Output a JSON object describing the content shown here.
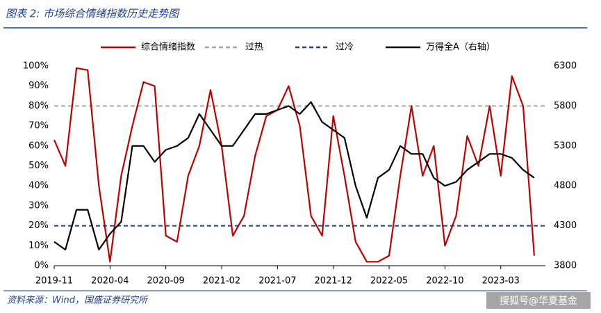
{
  "chart_data": {
    "type": "line",
    "title": "图表 2:  市场综合情绪指数历史走势图",
    "source": "资料来源：Wind，国盛证券研究所",
    "watermark": "搜狐号@华夏基金",
    "x": [
      "2019-11",
      "2019-12",
      "2020-01",
      "2020-02",
      "2020-03",
      "2020-04",
      "2020-05",
      "2020-06",
      "2020-07",
      "2020-08",
      "2020-09",
      "2020-10",
      "2020-11",
      "2020-12",
      "2021-01",
      "2021-02",
      "2021-03",
      "2021-04",
      "2021-05",
      "2021-06",
      "2021-07",
      "2021-08",
      "2021-09",
      "2021-10",
      "2021-11",
      "2021-12",
      "2022-01",
      "2022-02",
      "2022-03",
      "2022-04",
      "2022-05",
      "2022-06",
      "2022-07",
      "2022-08",
      "2022-09",
      "2022-10",
      "2022-11",
      "2022-12",
      "2023-01",
      "2023-02",
      "2023-03",
      "2023-04",
      "2023-05",
      "2023-06"
    ],
    "xlim": [
      "2019-11",
      "2023-07"
    ],
    "xticks": [
      "2019-11",
      "2020-04",
      "2020-09",
      "2021-02",
      "2021-07",
      "2021-12",
      "2022-05",
      "2022-10",
      "2023-03"
    ],
    "series": [
      {
        "name": "综合情绪指数",
        "color": "#c00000",
        "axis": "y",
        "values": [
          63,
          50,
          99,
          98,
          40,
          2,
          45,
          70,
          92,
          90,
          15,
          12,
          45,
          60,
          88,
          60,
          15,
          25,
          55,
          75,
          78,
          90,
          70,
          25,
          15,
          75,
          45,
          12,
          2,
          2,
          5,
          45,
          80,
          45,
          60,
          10,
          25,
          65,
          50,
          80,
          45,
          95,
          80,
          5
        ]
      },
      {
        "name": "万得全A（右轴）",
        "color": "#000000",
        "axis": "y2",
        "values": [
          4100,
          4000,
          4500,
          4500,
          4000,
          4200,
          4350,
          5300,
          5300,
          5100,
          5250,
          5300,
          5400,
          5700,
          5500,
          5300,
          5300,
          5500,
          5700,
          5700,
          5750,
          5800,
          5700,
          5850,
          5600,
          5500,
          5400,
          4800,
          4400,
          4900,
          5000,
          5300,
          5200,
          5200,
          4900,
          4800,
          4850,
          5000,
          5100,
          5200,
          5200,
          5150,
          5000,
          4900
        ]
      }
    ],
    "reference_lines": [
      {
        "name": "过热",
        "value": 80,
        "color": "#a6a6a6"
      },
      {
        "name": "过冷",
        "value": 20,
        "color": "#1f3f99"
      }
    ],
    "ylim": [
      0,
      100
    ],
    "yticks": [
      {
        "value": 0,
        "label": "0%"
      },
      {
        "value": 10,
        "label": "10%"
      },
      {
        "value": 20,
        "label": "20%"
      },
      {
        "value": 30,
        "label": "30%"
      },
      {
        "value": 40,
        "label": "40%"
      },
      {
        "value": 50,
        "label": "50%"
      },
      {
        "value": 60,
        "label": "60%"
      },
      {
        "value": 70,
        "label": "70%"
      },
      {
        "value": 80,
        "label": "80%"
      },
      {
        "value": 90,
        "label": "90%"
      },
      {
        "value": 100,
        "label": "100%"
      }
    ],
    "y2lim": [
      3800,
      6300
    ],
    "y2ticks": [
      3800,
      4300,
      4800,
      5300,
      5800,
      6300
    ]
  }
}
